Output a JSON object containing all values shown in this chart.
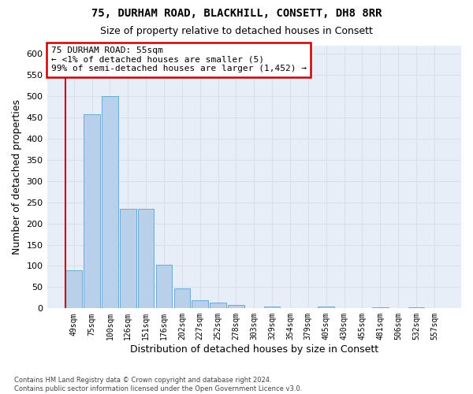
{
  "title_line1": "75, DURHAM ROAD, BLACKHILL, CONSETT, DH8 8RR",
  "title_line2": "Size of property relative to detached houses in Consett",
  "xlabel": "Distribution of detached houses by size in Consett",
  "ylabel": "Number of detached properties",
  "footnote": "Contains HM Land Registry data © Crown copyright and database right 2024.\nContains public sector information licensed under the Open Government Licence v3.0.",
  "bar_labels": [
    "49sqm",
    "75sqm",
    "100sqm",
    "126sqm",
    "151sqm",
    "176sqm",
    "202sqm",
    "227sqm",
    "252sqm",
    "278sqm",
    "303sqm",
    "329sqm",
    "354sqm",
    "379sqm",
    "405sqm",
    "430sqm",
    "455sqm",
    "481sqm",
    "506sqm",
    "532sqm",
    "557sqm"
  ],
  "bar_values": [
    90,
    457,
    500,
    235,
    235,
    102,
    47,
    20,
    13,
    8,
    0,
    5,
    0,
    0,
    5,
    0,
    0,
    3,
    0,
    3,
    0
  ],
  "bar_color": "#b8d0ea",
  "bar_edge_color": "#6aaad4",
  "annotation_line1": "75 DURHAM ROAD: 55sqm",
  "annotation_line2": "← <1% of detached houses are smaller (5)",
  "annotation_line3": "99% of semi-detached houses are larger (1,452) →",
  "annotation_box_facecolor": "#ffffff",
  "annotation_box_edgecolor": "#cc0000",
  "vline_color": "#cc0000",
  "ylim": [
    0,
    620
  ],
  "yticks": [
    0,
    50,
    100,
    150,
    200,
    250,
    300,
    350,
    400,
    450,
    500,
    550,
    600
  ],
  "bg_color": "#e8eef8",
  "grid_color": "#d8e0ec",
  "title1_fontsize": 10,
  "title2_fontsize": 9,
  "tick_fontsize": 7,
  "footnote_fontsize": 6,
  "ylabel_fontsize": 9,
  "xlabel_fontsize": 9
}
